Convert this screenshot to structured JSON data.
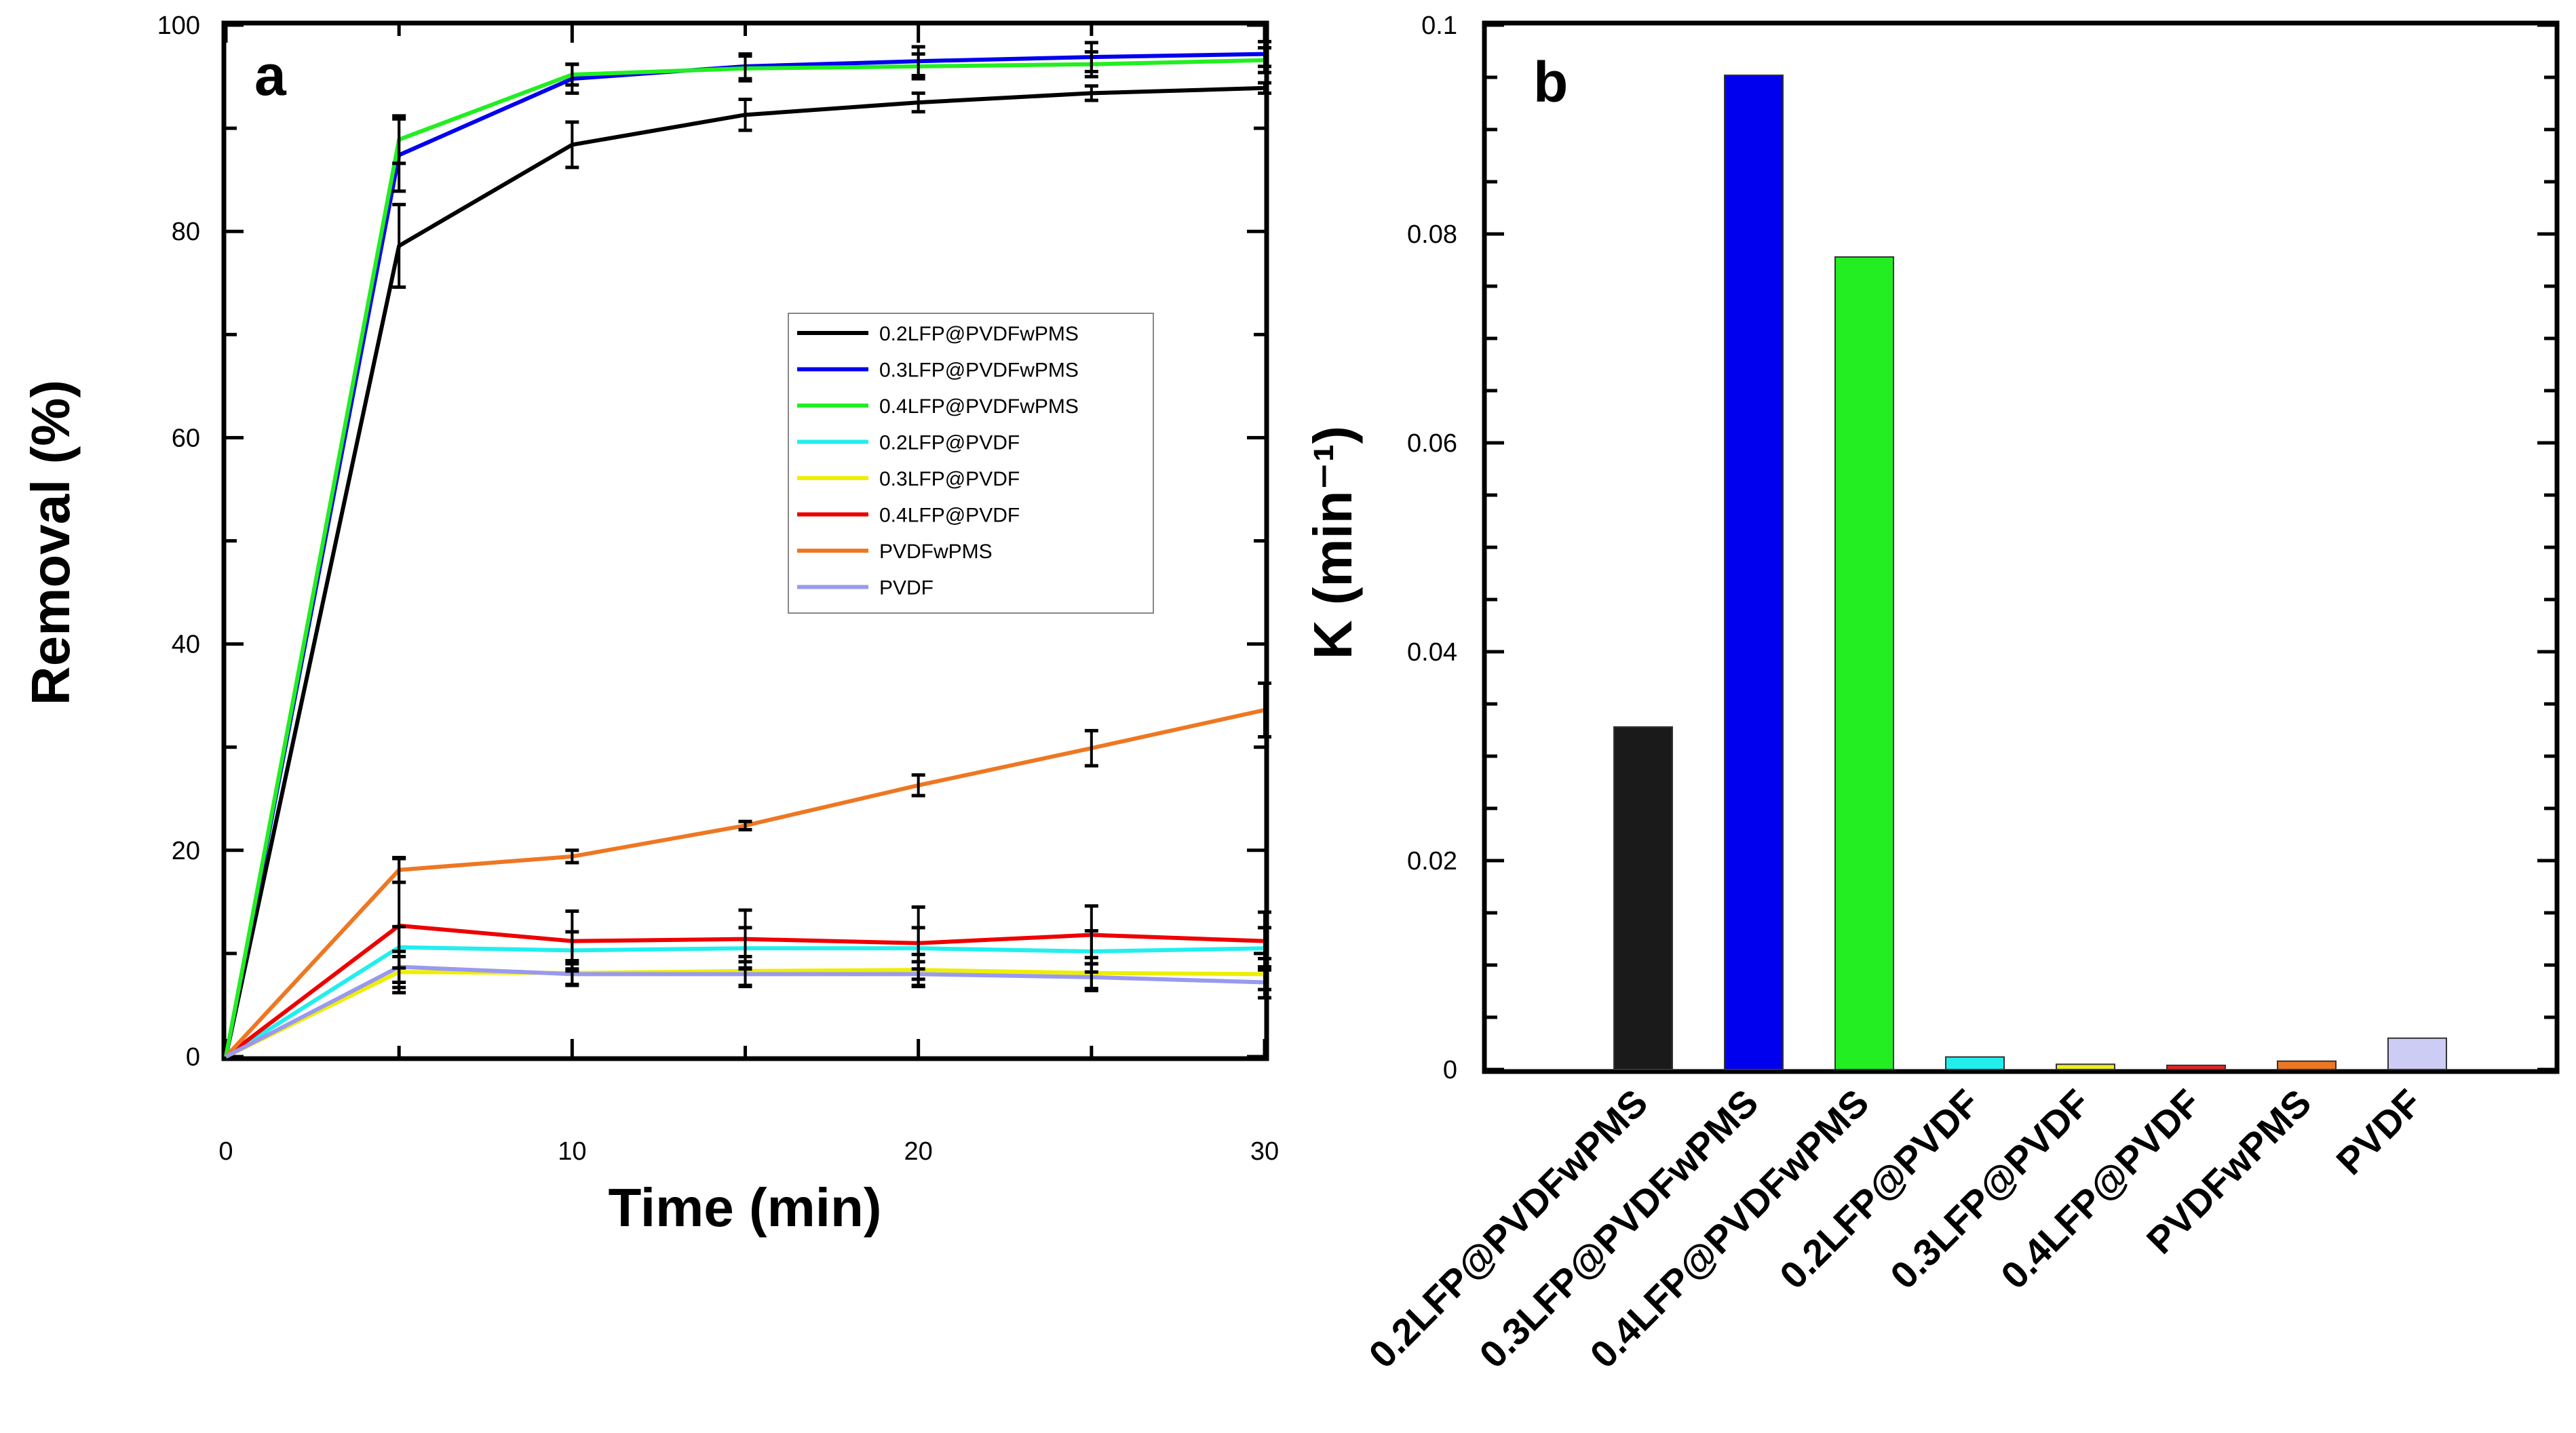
{
  "chart_data": [
    {
      "panel": "a",
      "type": "line",
      "xlabel": "Time (min)",
      "ylabel": "Removal (%)",
      "xlim": [
        0,
        30
      ],
      "ylim": [
        0,
        100
      ],
      "xticks": [
        0,
        10,
        20,
        30
      ],
      "yticks": [
        0,
        20,
        40,
        60,
        80,
        100
      ],
      "legend_position": "center-right",
      "x": [
        0,
        5,
        10,
        15,
        20,
        25,
        30
      ],
      "series": [
        {
          "name": "0.2LFP@PVDFwPMS",
          "color": "#000000",
          "values": [
            0,
            78.6,
            88.4,
            91.3,
            92.5,
            93.4,
            93.9
          ],
          "errors": [
            0,
            4.0,
            2.2,
            1.5,
            0.9,
            0.7,
            0.5
          ]
        },
        {
          "name": "0.3LFP@PVDFwPMS",
          "color": "#0000ee",
          "values": [
            0,
            87.4,
            94.8,
            96.0,
            96.5,
            96.9,
            97.2
          ],
          "errors": [
            0,
            3.5,
            1.4,
            1.2,
            1.4,
            1.4,
            1.2
          ]
        },
        {
          "name": "0.4LFP@PVDFwPMS",
          "color": "#22ee22",
          "values": [
            0,
            88.9,
            95.2,
            95.8,
            96.0,
            96.2,
            96.6
          ],
          "errors": [
            0,
            2.3,
            1.0,
            1.2,
            1.2,
            1.2,
            1.2
          ]
        },
        {
          "name": "0.2LFP@PVDF",
          "color": "#22eeee",
          "values": [
            0,
            10.6,
            10.3,
            10.5,
            10.5,
            10.2,
            10.5
          ],
          "errors": [
            0,
            2.0,
            1.8,
            2.0,
            2.0,
            2.0,
            2.0
          ]
        },
        {
          "name": "0.3LFP@PVDF",
          "color": "#eeee00",
          "values": [
            0,
            8.2,
            8.1,
            8.3,
            8.4,
            8.1,
            8.0
          ],
          "errors": [
            0,
            1.5,
            1.2,
            1.4,
            1.5,
            1.5,
            1.5
          ]
        },
        {
          "name": "0.4LFP@PVDF",
          "color": "#ee0000",
          "values": [
            0,
            12.7,
            11.2,
            11.4,
            11.0,
            11.8,
            11.2
          ],
          "errors": [
            0,
            6.5,
            2.9,
            2.8,
            3.5,
            2.8,
            2.8
          ]
        },
        {
          "name": "PVDFwPMS",
          "color": "#ee7722",
          "values": [
            0,
            18.1,
            19.4,
            22.4,
            26.3,
            29.9,
            33.6
          ],
          "errors": [
            0,
            1.2,
            0.6,
            0.4,
            1.0,
            1.7,
            2.6
          ]
        },
        {
          "name": "PVDF",
          "color": "#9999ee",
          "values": [
            0,
            8.7,
            8.0,
            8.0,
            8.0,
            7.7,
            7.2
          ],
          "errors": [
            0,
            1.5,
            1.0,
            1.2,
            1.2,
            1.3,
            1.5
          ]
        }
      ]
    },
    {
      "panel": "b",
      "type": "bar",
      "xlabel": "",
      "ylabel": "K (min⁻¹)",
      "ylim": [
        0,
        0.1
      ],
      "yticks": [
        0,
        0.02,
        0.04,
        0.06,
        0.08,
        0.1
      ],
      "ytick_labels": [
        "0",
        "0.02",
        "0.04",
        "0.06",
        "0.08",
        "0.1"
      ],
      "categories": [
        "0.2LFP@PVDFwPMS",
        "0.3LFP@PVDFwPMS",
        "0.4LFP@PVDFwPMS",
        "0.2LFP@PVDF",
        "0.3LFP@PVDF",
        "0.4LFP@PVDF",
        "PVDFwPMS",
        "PVDF"
      ],
      "values": [
        0.0328,
        0.0952,
        0.0778,
        0.0012,
        0.0005,
        0.0004,
        0.0008,
        0.003
      ],
      "colors": [
        "#1a1a1a",
        "#0000ee",
        "#22ee22",
        "#22eeee",
        "#eeee22",
        "#ee2222",
        "#ee7722",
        "#ccccf4"
      ]
    }
  ]
}
